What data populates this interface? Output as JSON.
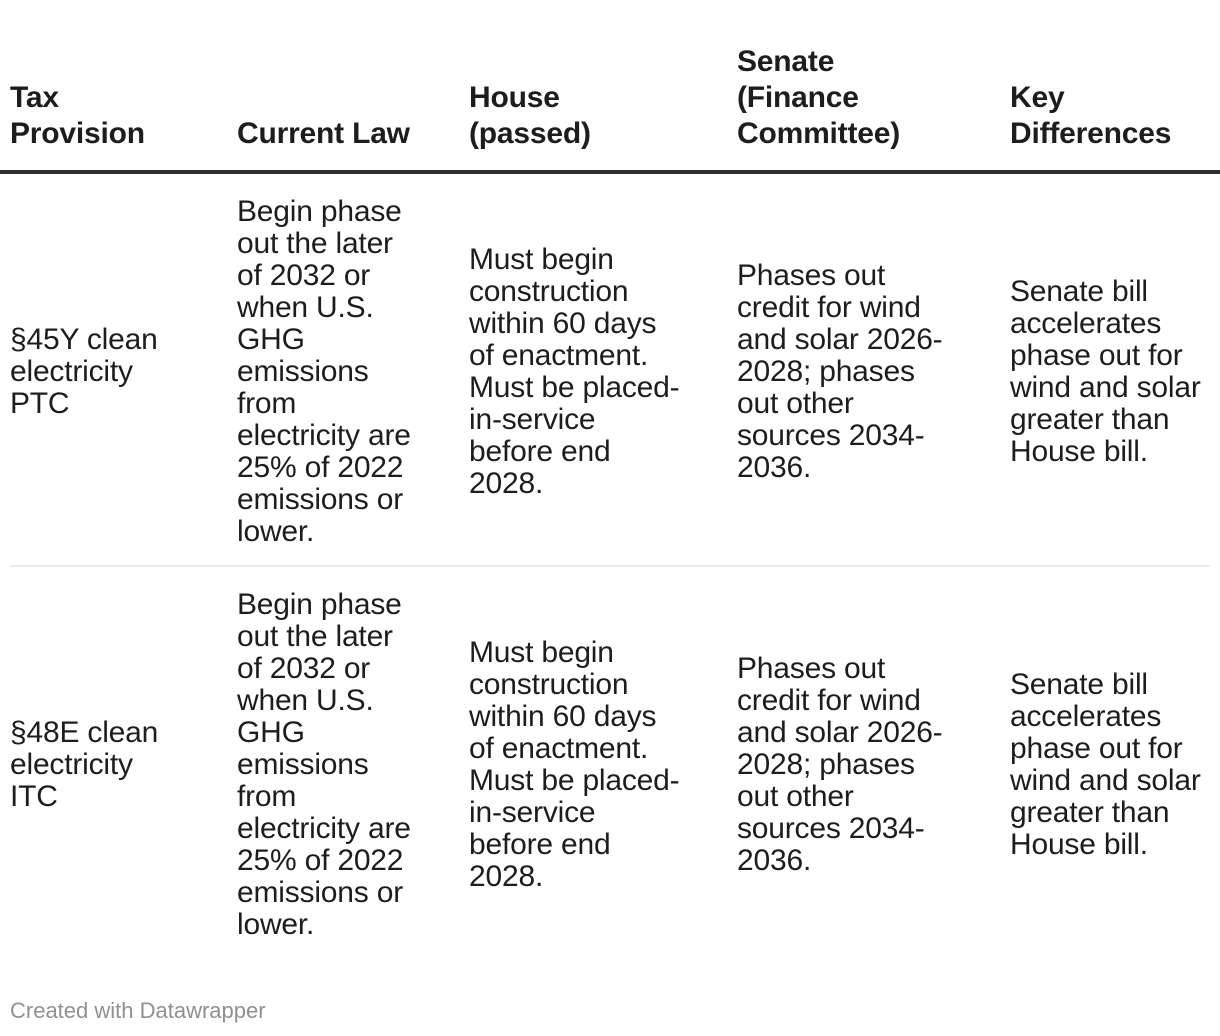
{
  "chart_data": {
    "type": "table",
    "columns": [
      "Tax Provision",
      "Current Law",
      "House (passed)",
      "Senate (Finance Committee)",
      "Key Differences"
    ],
    "rows": [
      [
        "§45Y clean electricity PTC",
        "Begin phase out the later of 2032 or when U.S. GHG emissions from electricity are 25% of 2022 emissions or lower.",
        "Must begin construction within 60 days of enactment. Must be placed-in-service before end 2028.",
        "Phases out credit for wind and solar 2026-2028; phases out other sources 2034-2036.",
        "Senate bill accelerates phase out for wind and solar greater than House bill."
      ],
      [
        "§48E clean electricity ITC",
        "Begin phase out the later of 2032 or when U.S. GHG emissions from electricity are 25% of 2022 emissions or lower.",
        "Must begin construction within 60 days of enactment. Must be placed-in-service before end 2028.",
        "Phases out credit for wind and solar 2026-2028; phases out other sources 2034-2036.",
        "Senate bill accelerates phase out for wind and solar greater than House bill."
      ]
    ],
    "title": "",
    "legend_position": "none",
    "grid": "header-rule and single light row divider"
  },
  "table": {
    "header_labels": [
      "Tax\nProvision",
      "Current Law",
      "House\n(passed)",
      "Senate\n(Finance\nCommittee)",
      "Key\nDifferences"
    ],
    "rows": [
      {
        "cells": [
          "§45Y clean\nelectricity\nPTC",
          "Begin phase\nout the later\nof 2032 or\nwhen U.S.\nGHG\nemissions\nfrom\nelectricity are\n25% of 2022\nemissions or\nlower.",
          "Must begin\nconstruction\nwithin 60 days\nof enactment.\nMust be placed-\nin-service\nbefore end\n2028.",
          "Phases out\ncredit for wind\nand solar 2026-\n2028; phases\nout other\nsources 2034-\n2036.",
          "Senate bill\naccelerates\nphase out for\nwind and solar\ngreater than\nHouse bill."
        ]
      },
      {
        "cells": [
          "§48E clean\nelectricity\nITC",
          "Begin phase\nout the later\nof 2032 or\nwhen U.S.\nGHG\nemissions\nfrom\nelectricity are\n25% of 2022\nemissions or\nlower.",
          "Must begin\nconstruction\nwithin 60 days\nof enactment.\nMust be placed-\nin-service\nbefore end\n2028.",
          "Phases out\ncredit for wind\nand solar 2026-\n2028; phases\nout other\nsources 2034-\n2036.",
          "Senate bill\naccelerates\nphase out for\nwind and solar\ngreater than\nHouse bill."
        ]
      }
    ]
  },
  "footer": {
    "credit": "Created with Datawrapper"
  },
  "colors": {
    "text": "#1d1d1d",
    "header_rule": "#2f2f2f",
    "row_divider": "#ededed",
    "footer_text": "#909090",
    "background": "#ffffff"
  }
}
